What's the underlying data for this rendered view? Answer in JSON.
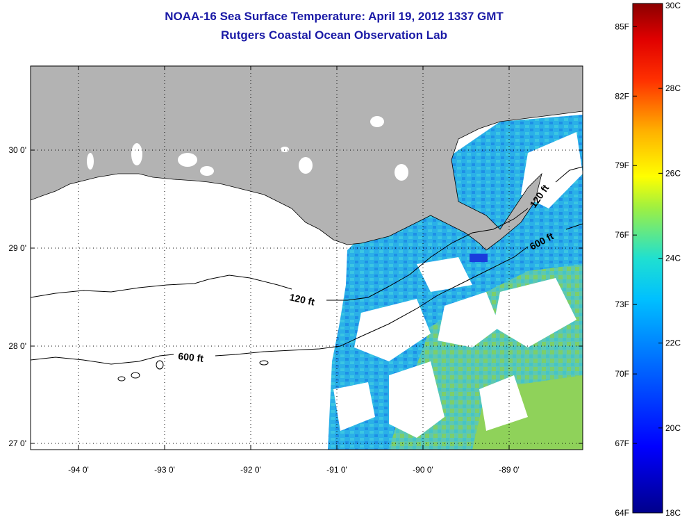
{
  "title": {
    "line1": "NOAA-16 Sea Surface Temperature:  April 19, 2012 1337 GMT",
    "line2": "Rutgers Coastal Ocean Observation Lab"
  },
  "map": {
    "lon_range": [
      -94.5,
      -88.2
    ],
    "lat_range": [
      26.95,
      28.85
    ],
    "longitude_ticks": [
      {
        "value": -94,
        "label": "-94 0'"
      },
      {
        "value": -93,
        "label": "-93 0'"
      },
      {
        "value": -92,
        "label": "-92 0'"
      },
      {
        "value": -91,
        "label": "-91 0'"
      },
      {
        "value": -90,
        "label": "-90 0'"
      },
      {
        "value": -89,
        "label": "-89 0'"
      }
    ],
    "latitude_ticks": [
      {
        "value": 30,
        "label": "30 0'"
      },
      {
        "value": 29,
        "label": "29 0'"
      },
      {
        "value": 28,
        "label": "28 0'"
      },
      {
        "value": 27,
        "label": "27 0'"
      }
    ],
    "contours": [
      {
        "name": "isobath-120",
        "label": "120 ft"
      },
      {
        "name": "isobath-600",
        "label": "600 ft"
      }
    ],
    "colors": {
      "land": "#b3b3b3",
      "water_no_data": "#ffffff",
      "sst_cool": "#2a6ee8",
      "sst_mid": "#2bb6e6",
      "sst_warm": "#7ccf6a"
    }
  },
  "colorbar": {
    "colors": [
      "#00008b",
      "#0000ff",
      "#0060ff",
      "#00b0ff",
      "#20e0e0",
      "#60e080",
      "#b0f040",
      "#ffff00",
      "#ffb000",
      "#ff5000",
      "#ff0000",
      "#8b0000"
    ],
    "fahrenheit_labels": [
      {
        "value": 64,
        "label": "64F"
      },
      {
        "value": 67,
        "label": "67F"
      },
      {
        "value": 70,
        "label": "70F"
      },
      {
        "value": 73,
        "label": "73F"
      },
      {
        "value": 76,
        "label": "76F"
      },
      {
        "value": 79,
        "label": "79F"
      },
      {
        "value": 82,
        "label": "82F"
      },
      {
        "value": 85,
        "label": "85F"
      }
    ],
    "celsius_labels": [
      {
        "value": 18,
        "label": "18C"
      },
      {
        "value": 20,
        "label": "20C"
      },
      {
        "value": 22,
        "label": "22C"
      },
      {
        "value": 24,
        "label": "24C"
      },
      {
        "value": 26,
        "label": "26C"
      },
      {
        "value": 28,
        "label": "28C"
      },
      {
        "value": 30,
        "label": "30C"
      }
    ]
  }
}
